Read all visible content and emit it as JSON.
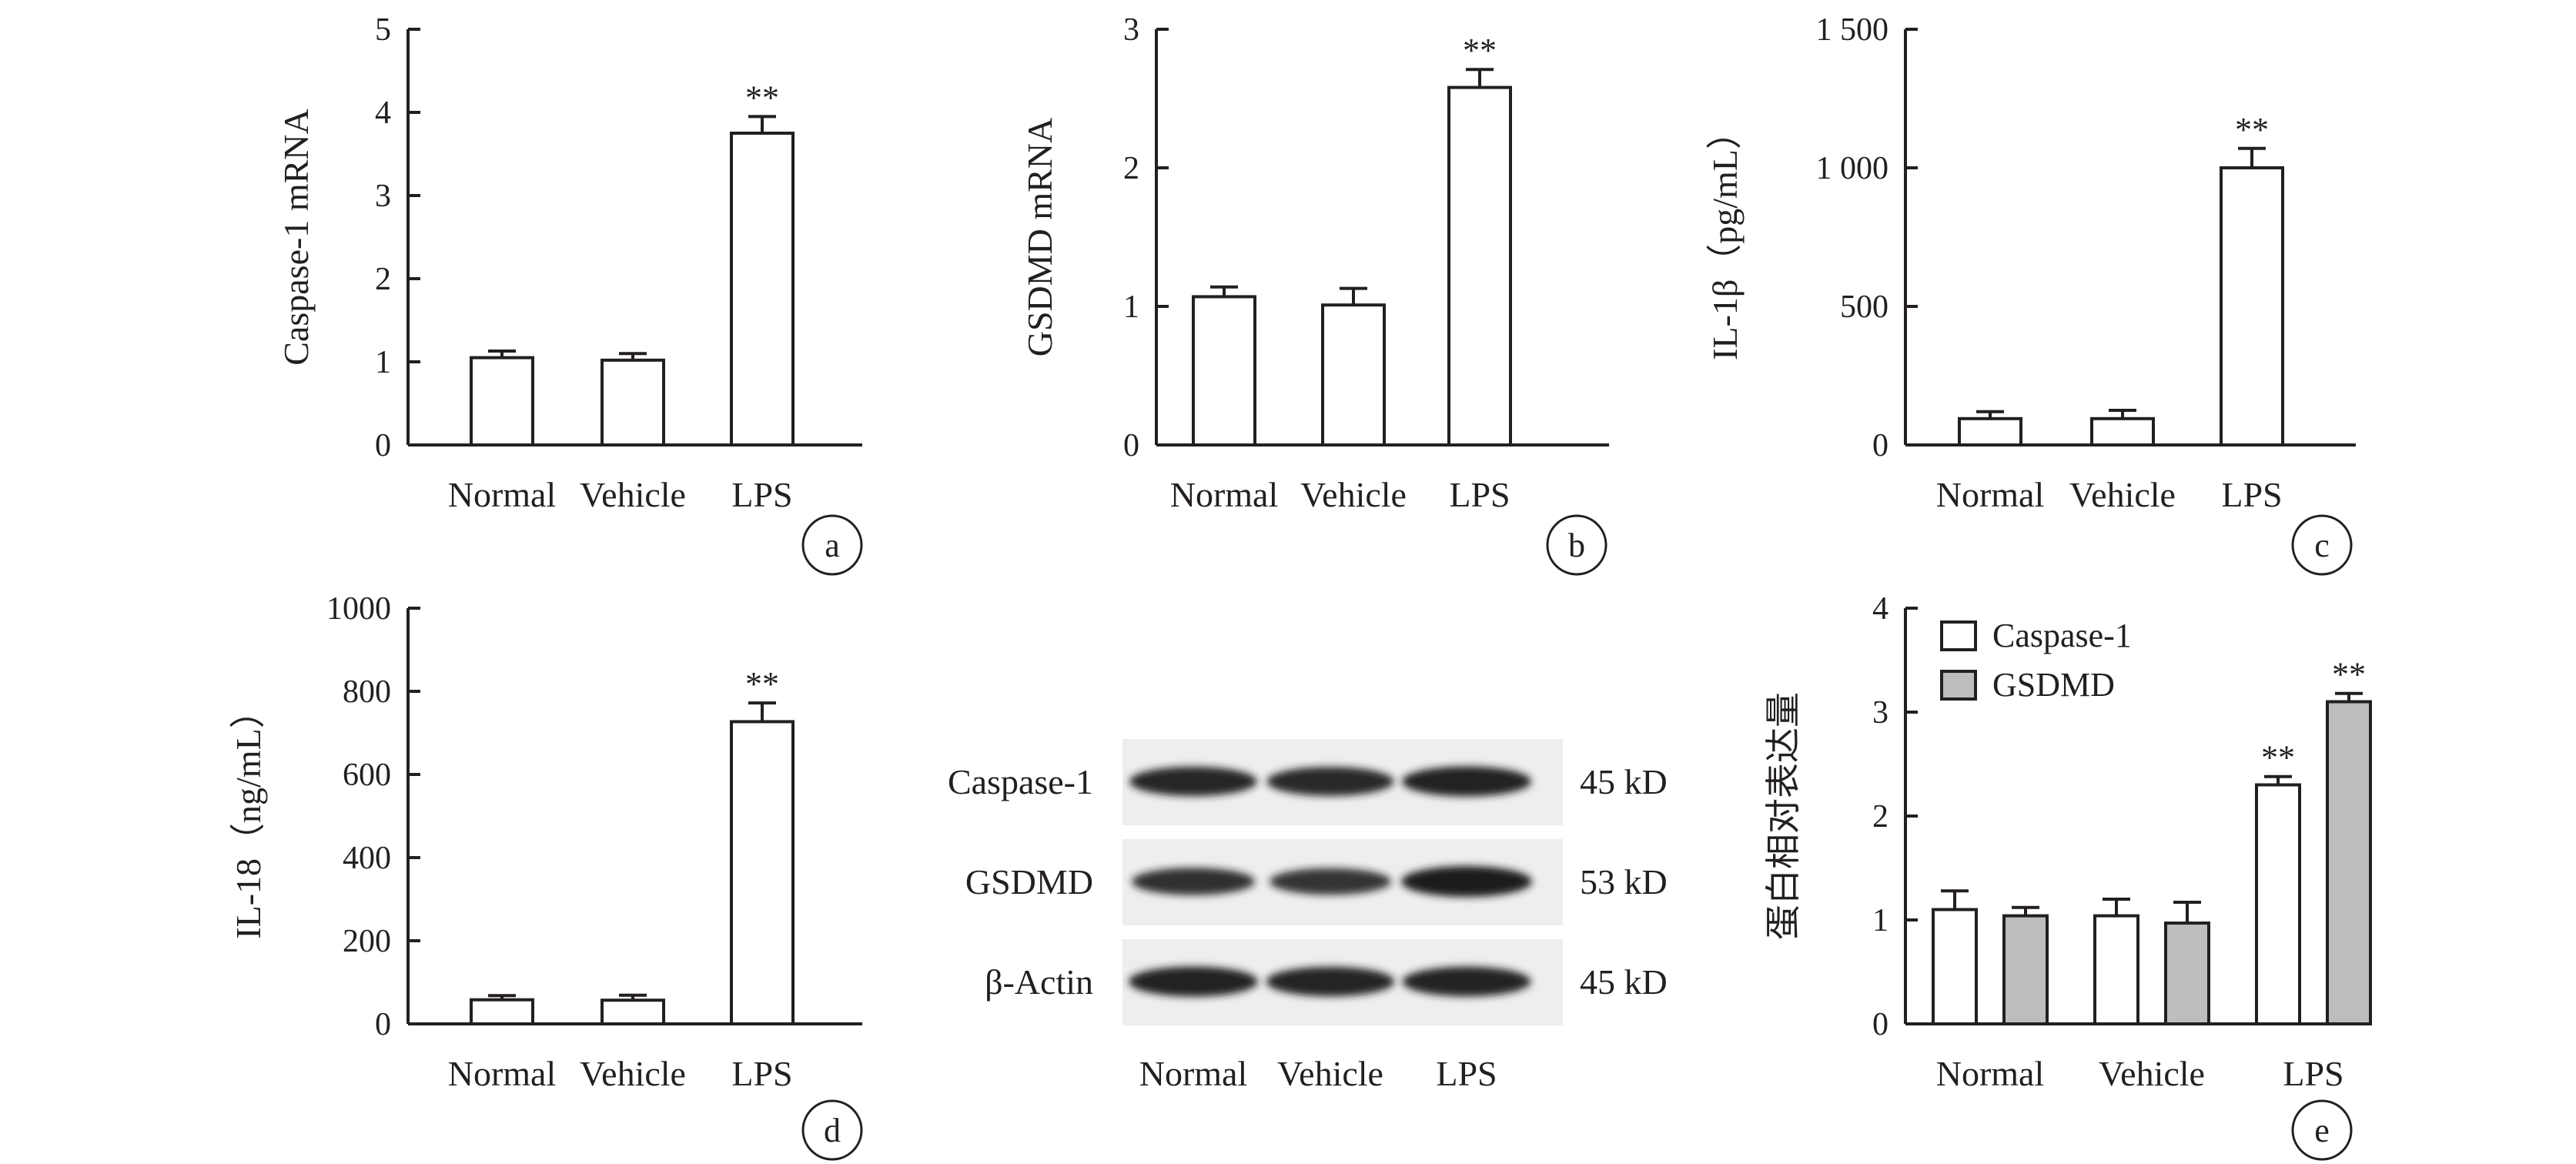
{
  "chart_data": [
    {
      "type": "bar",
      "categories": [
        "Normal",
        "Vehicle",
        "LPS"
      ],
      "series": [
        {
          "values": [
            1.05,
            1.02,
            3.75
          ],
          "errors": [
            0.08,
            0.08,
            0.2
          ],
          "sig": [
            "",
            "",
            "**"
          ]
        }
      ],
      "ylabel": "Caspase-1 mRNA",
      "ylim": [
        0,
        5
      ],
      "yticks": [
        {
          "v": 0,
          "t": "0"
        },
        {
          "v": 1,
          "t": "1"
        },
        {
          "v": 2,
          "t": "2"
        },
        {
          "v": 3,
          "t": "3"
        },
        {
          "v": 4,
          "t": "4"
        },
        {
          "v": 5,
          "t": "5"
        }
      ],
      "panel_label": "a"
    },
    {
      "type": "bar",
      "categories": [
        "Normal",
        "Vehicle",
        "LPS"
      ],
      "series": [
        {
          "values": [
            1.07,
            1.01,
            2.58
          ],
          "errors": [
            0.07,
            0.12,
            0.13
          ],
          "sig": [
            "",
            "",
            "**"
          ]
        }
      ],
      "ylabel": "GSDMD mRNA",
      "ylim": [
        0,
        3
      ],
      "yticks": [
        {
          "v": 0,
          "t": "0"
        },
        {
          "v": 1,
          "t": "1"
        },
        {
          "v": 2,
          "t": "2"
        },
        {
          "v": 3,
          "t": "3"
        }
      ],
      "panel_label": "b"
    },
    {
      "type": "bar",
      "categories": [
        "Normal",
        "Vehicle",
        "LPS"
      ],
      "series": [
        {
          "values": [
            95,
            95,
            1000
          ],
          "errors": [
            25,
            30,
            70
          ],
          "sig": [
            "",
            "",
            "**"
          ]
        }
      ],
      "ylabel": "IL-1β（pg/mL）",
      "ylim": [
        0,
        1500
      ],
      "yticks": [
        {
          "v": 0,
          "t": "0"
        },
        {
          "v": 500,
          "t": "500"
        },
        {
          "v": 1000,
          "t": "1 000"
        },
        {
          "v": 1500,
          "t": "1 500"
        }
      ],
      "panel_label": "c"
    },
    {
      "type": "bar",
      "categories": [
        "Normal",
        "Vehicle",
        "LPS"
      ],
      "series": [
        {
          "values": [
            58,
            57,
            727
          ],
          "errors": [
            10,
            12,
            45
          ],
          "sig": [
            "",
            "",
            "**"
          ]
        }
      ],
      "ylabel": "IL-18（ng/mL）",
      "ylim": [
        0,
        1000
      ],
      "yticks": [
        {
          "v": 0,
          "t": "0"
        },
        {
          "v": 200,
          "t": "200"
        },
        {
          "v": 400,
          "t": "400"
        },
        {
          "v": 600,
          "t": "600"
        },
        {
          "v": 800,
          "t": "800"
        },
        {
          "v": 1000,
          "t": "1000"
        }
      ],
      "panel_label": "d"
    },
    {
      "type": "bar",
      "categories": [
        "Normal",
        "Vehicle",
        "LPS"
      ],
      "series": [
        {
          "name": "Caspase-1",
          "color": "#ffffff",
          "values": [
            1.1,
            1.04,
            2.3
          ],
          "errors": [
            0.18,
            0.16,
            0.08
          ],
          "sig": [
            "",
            "",
            "**"
          ]
        },
        {
          "name": "GSDMD",
          "color": "#bdbdbd",
          "values": [
            1.04,
            0.97,
            3.1
          ],
          "errors": [
            0.08,
            0.2,
            0.08
          ],
          "sig": [
            "",
            "",
            "**"
          ]
        }
      ],
      "ylabel": "蛋白相对表达量",
      "ylim": [
        0,
        4
      ],
      "yticks": [
        {
          "v": 0,
          "t": "0"
        },
        {
          "v": 1,
          "t": "1"
        },
        {
          "v": 2,
          "t": "2"
        },
        {
          "v": 3,
          "t": "3"
        },
        {
          "v": 4,
          "t": "4"
        }
      ],
      "legend": "top-left",
      "panel_label": "e"
    }
  ],
  "blot": {
    "rows": [
      {
        "label": "Caspase-1",
        "size": "45 kD",
        "intensity": [
          0.9,
          0.88,
          0.95
        ]
      },
      {
        "label": "GSDMD",
        "size": "53 kD",
        "intensity": [
          0.75,
          0.7,
          1.0
        ]
      },
      {
        "label": "β-Actin",
        "size": "45 kD",
        "intensity": [
          0.95,
          0.92,
          0.93
        ]
      }
    ],
    "lanes": [
      "Normal",
      "Vehicle",
      "LPS"
    ]
  }
}
